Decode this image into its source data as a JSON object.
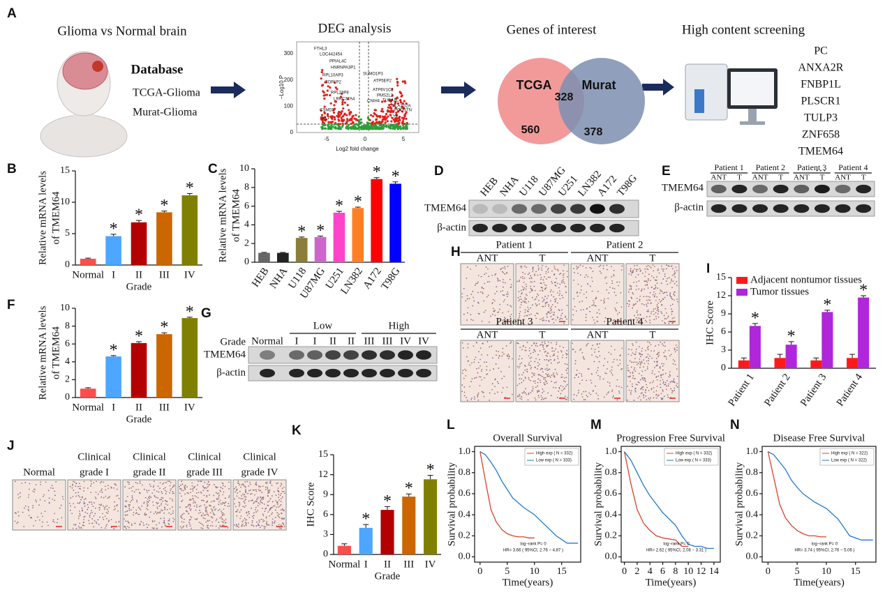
{
  "workflow": {
    "label": "A",
    "step1": {
      "title": "Glioma vs Normal brain",
      "heading": "Database",
      "items": [
        "TCGA-Glioma",
        "Murat-Glioma"
      ]
    },
    "step2": {
      "title": "DEG analysis",
      "y_axis": "−Log10 P",
      "x_axis": "Log2 fold change",
      "yticks": [
        "0",
        "100",
        "200",
        "300"
      ],
      "xticks": [
        "-5",
        "0",
        "5"
      ],
      "genes": [
        "FTHL3",
        "LOC442454",
        "PPIAL4C",
        "HNRNPA3P1",
        "RPL10AP3",
        "TOP1P2",
        "RPL23P8",
        "LRRC37A4",
        "CSMD3",
        "KLF",
        "SUMO1P3",
        "ATP5EP2",
        "ATP6V1C2",
        "PMS2L2",
        "CNIH4",
        "TUBA1C",
        "PLA2G2A",
        "PODSTN",
        "LYF"
      ]
    },
    "step3": {
      "title": "Genes of interest",
      "left": "TCGA",
      "right": "Murat",
      "left_only": 560,
      "both": 328,
      "right_only": 378
    },
    "step4": {
      "title": "High content screening",
      "genes": [
        "PC",
        "ANXA2R",
        "FNBP1L",
        "PLSCR1",
        "TULP3",
        "ZNF658",
        "TMEM64",
        "…"
      ]
    }
  },
  "blot_D": {
    "label": "D",
    "lanes": [
      "HEB",
      "NHA",
      "U118",
      "U87MG",
      "U251",
      "LN382",
      "A172",
      "T98G"
    ],
    "rows": [
      "TMEM64",
      "β-actin"
    ]
  },
  "blot_E": {
    "label": "E",
    "patients": [
      "Patient 1",
      "Patient 2",
      "Patient 3",
      "Patient 4"
    ],
    "lanes": [
      "ANT",
      "T"
    ],
    "rows": [
      "TMEM64",
      "β-actin"
    ]
  },
  "blot_G": {
    "label": "G",
    "row_header": "Grade",
    "groups": [
      "Low",
      "High"
    ],
    "lanes": [
      "Normal",
      "I",
      "I",
      "II",
      "II",
      "III",
      "III",
      "IV",
      "IV"
    ],
    "rows": [
      "TMEM64",
      "β-actin"
    ]
  },
  "ihc_H": {
    "label": "H",
    "patients": [
      "Patient 1",
      "Patient 2",
      "Patient 3",
      "Patient 4"
    ],
    "columns": [
      "ANT",
      "T"
    ]
  },
  "ihc_J": {
    "label": "J",
    "images": [
      [
        "Normal"
      ],
      [
        "Clinical",
        "grade I"
      ],
      [
        "Clinical",
        "grade II"
      ],
      [
        "Clinical",
        "grade III"
      ],
      [
        "Clinical",
        "grade IV"
      ]
    ]
  },
  "chart_data": [
    {
      "type": "bar",
      "panel_label": "B",
      "ylabel": [
        "Relative  mRNA levels",
        "of TMEM64"
      ],
      "xlabel": "Grade",
      "categories": [
        "Normal",
        "I",
        "II",
        "III",
        "IV"
      ],
      "values": [
        1,
        4.6,
        6.8,
        8.4,
        11.1
      ],
      "errors": [
        0.1,
        0.3,
        0.3,
        0.2,
        0.3
      ],
      "significance": [
        null,
        "*",
        "*",
        "*",
        "*"
      ],
      "colors": [
        "#ff4d4d",
        "#4da6ff",
        "#b30000",
        "#cc6600",
        "#808000"
      ],
      "ylim": [
        0,
        15
      ],
      "yticks": [
        0,
        5,
        10,
        15
      ]
    },
    {
      "type": "bar",
      "panel_label": "C",
      "ylabel": [
        "Relative  mRNA levels",
        "of TMEM64"
      ],
      "categories": [
        "HEB",
        "NHA",
        "U118",
        "U87MG",
        "U251",
        "LN382",
        "A172",
        "T98G"
      ],
      "values": [
        1,
        1,
        2.6,
        2.7,
        5.3,
        5.8,
        8.9,
        8.4
      ],
      "errors": [
        0.05,
        0.05,
        0.1,
        0.1,
        0.15,
        0.1,
        0.15,
        0.2
      ],
      "significance": [
        null,
        null,
        "*",
        "*",
        "*",
        "*",
        "*",
        "*"
      ],
      "colors": [
        "#666666",
        "#222222",
        "#8b7d3a",
        "#cc66cc",
        "#ff44cc",
        "#ff7f27",
        "#ff0000",
        "#0000ff"
      ],
      "ylim": [
        0,
        10
      ],
      "yticks": [
        0,
        2,
        4,
        6,
        8,
        10
      ]
    },
    {
      "type": "bar",
      "panel_label": "F",
      "ylabel": [
        "Relative  mRNA levels",
        "of TMEM64"
      ],
      "xlabel": "Grade",
      "categories": [
        "Normal",
        "I",
        "II",
        "III",
        "IV"
      ],
      "values": [
        1,
        4.6,
        6.1,
        7.1,
        8.9
      ],
      "errors": [
        0.1,
        0.1,
        0.15,
        0.15,
        0.1
      ],
      "significance": [
        null,
        "*",
        "*",
        "*",
        "*"
      ],
      "colors": [
        "#ff4d4d",
        "#4da6ff",
        "#b30000",
        "#cc6600",
        "#808000"
      ],
      "ylim": [
        0,
        10
      ],
      "yticks": [
        0,
        2,
        4,
        6,
        8,
        10
      ]
    },
    {
      "type": "bar",
      "panel_label": "I",
      "ylabel": [
        "IHC Score"
      ],
      "categories": [
        "Patient 1",
        "Patient 2",
        "Patient 3",
        "Patient 4"
      ],
      "series": [
        {
          "name": "Adjacent nontumor tissues",
          "color": "#ff1a1a",
          "values": [
            1.3,
            1.7,
            1.3,
            1.7
          ],
          "errors": [
            0.4,
            0.6,
            0.4,
            0.6
          ]
        },
        {
          "name": "Tumor tissues",
          "color": "#b026d9",
          "values": [
            7,
            3.9,
            9.3,
            11.7
          ],
          "errors": [
            0.4,
            0.5,
            0.3,
            0.3
          ],
          "significance": [
            "*",
            "*",
            "*",
            "*"
          ]
        }
      ],
      "legend": "upper left",
      "ylim": [
        0,
        15
      ],
      "yticks": [
        0,
        3,
        6,
        9,
        12,
        15
      ]
    },
    {
      "type": "bar",
      "panel_label": "K",
      "ylabel": [
        "IHC Score"
      ],
      "xlabel": "Grade",
      "categories": [
        "Normal",
        "I",
        "II",
        "III",
        "IV"
      ],
      "values": [
        1.3,
        4,
        6.7,
        8.7,
        11.3
      ],
      "errors": [
        0.3,
        0.5,
        0.5,
        0.4,
        0.6
      ],
      "significance": [
        null,
        "*",
        "*",
        "*",
        "*"
      ],
      "colors": [
        "#ff4d4d",
        "#4da6ff",
        "#b30000",
        "#cc6600",
        "#808000"
      ],
      "ylim": [
        0,
        15
      ],
      "yticks": [
        0,
        3,
        6,
        9,
        12,
        15
      ]
    },
    {
      "type": "line",
      "panel_label": "L",
      "title": "Overall Survival",
      "xlabel": "Time(years)",
      "ylabel": "Survival probability",
      "series": [
        {
          "name": "High exp ( N = 332)",
          "color": "#d9412b",
          "x": [
            0,
            1,
            2,
            3,
            4,
            5,
            6,
            7,
            8,
            9,
            10
          ],
          "values": [
            1,
            0.72,
            0.45,
            0.33,
            0.26,
            0.22,
            0.2,
            0.19,
            0.19,
            0.18,
            0.18
          ]
        },
        {
          "name": "Low exp ( N = 333)",
          "color": "#1f78c8",
          "x": [
            0,
            1,
            2,
            3,
            4,
            5,
            6,
            8,
            10,
            12,
            14,
            16,
            18
          ],
          "values": [
            1,
            0.97,
            0.9,
            0.82,
            0.72,
            0.64,
            0.56,
            0.47,
            0.4,
            0.3,
            0.2,
            0.13,
            0.13
          ]
        }
      ],
      "annotations": [
        "log−rank P= 0",
        "HR= 3.66 ( 95%CI, 2.76 − 4.87 )"
      ],
      "legend": "upper right",
      "xlim": [
        -1,
        18.5
      ],
      "xticks": [
        0,
        5,
        10,
        15
      ],
      "ylim": [
        -0.05,
        1.05
      ],
      "yticks": [
        {
          "value": 0,
          "label": "0.0"
        },
        0.2,
        0.4,
        0.6,
        0.8,
        {
          "value": 1,
          "label": "1.0"
        }
      ]
    },
    {
      "type": "line",
      "panel_label": "M",
      "title": "Progression Free Survival",
      "xlabel": "Time(years)",
      "ylabel": "Survival probability",
      "series": [
        {
          "name": "High exp ( N = 332)",
          "color": "#d9412b",
          "x": [
            0,
            1,
            2,
            3,
            4,
            5,
            6,
            7,
            8,
            9,
            10
          ],
          "values": [
            1,
            0.7,
            0.45,
            0.32,
            0.25,
            0.2,
            0.18,
            0.17,
            0.16,
            0.1,
            0.1
          ]
        },
        {
          "name": "Low exp ( N = 333)",
          "color": "#1f78c8",
          "x": [
            0,
            1,
            2,
            3,
            4,
            5,
            6,
            7,
            8,
            9,
            10,
            11,
            12,
            13,
            14
          ],
          "values": [
            1,
            0.92,
            0.8,
            0.68,
            0.58,
            0.5,
            0.42,
            0.36,
            0.3,
            0.2,
            0.12,
            0.1,
            0.1,
            0.08,
            0.08
          ]
        }
      ],
      "annotations": [
        "log−rank P= 0",
        "HR= 2.62 ( 95%CI, 2.08 − 3.31 )"
      ],
      "legend": "upper right",
      "xlim": [
        -0.5,
        15
      ],
      "xticks": [
        0,
        2,
        4,
        6,
        8,
        10,
        12,
        14
      ],
      "ylim": [
        -0.05,
        1.05
      ],
      "yticks": [
        {
          "value": 0,
          "label": "0.0"
        },
        0.2,
        0.4,
        0.6,
        0.8,
        {
          "value": 1,
          "label": "1.0"
        }
      ]
    },
    {
      "type": "line",
      "panel_label": "N",
      "title": "Disease Free Survival",
      "xlabel": "Time(years)",
      "ylabel": "Survival probability",
      "series": [
        {
          "name": "High exp ( N = 322)",
          "color": "#d9412b",
          "x": [
            0,
            1,
            2,
            3,
            4,
            5,
            6,
            7,
            8,
            9,
            10
          ],
          "values": [
            1,
            0.75,
            0.5,
            0.37,
            0.3,
            0.25,
            0.22,
            0.2,
            0.2,
            0.19,
            0.19
          ]
        },
        {
          "name": "Low exp ( N = 322)",
          "color": "#1f78c8",
          "x": [
            0,
            1,
            2,
            3,
            4,
            5,
            6,
            8,
            10,
            12,
            14,
            16,
            18
          ],
          "values": [
            1,
            0.97,
            0.9,
            0.83,
            0.73,
            0.66,
            0.6,
            0.52,
            0.46,
            0.36,
            0.2,
            0.16,
            0.16
          ]
        }
      ],
      "annotations": [
        "log−rank P= 0",
        "HR= 3.74 ( 95%CI, 2.76 − 5.06 )"
      ],
      "legend": "upper right",
      "xlim": [
        -1,
        18.5
      ],
      "xticks": [
        0,
        5,
        10,
        15
      ],
      "ylim": [
        -0.05,
        1.05
      ],
      "yticks": [
        {
          "value": 0,
          "label": "0.0"
        },
        0.2,
        0.4,
        0.6,
        0.8,
        {
          "value": 1,
          "label": "1.0"
        }
      ]
    }
  ]
}
